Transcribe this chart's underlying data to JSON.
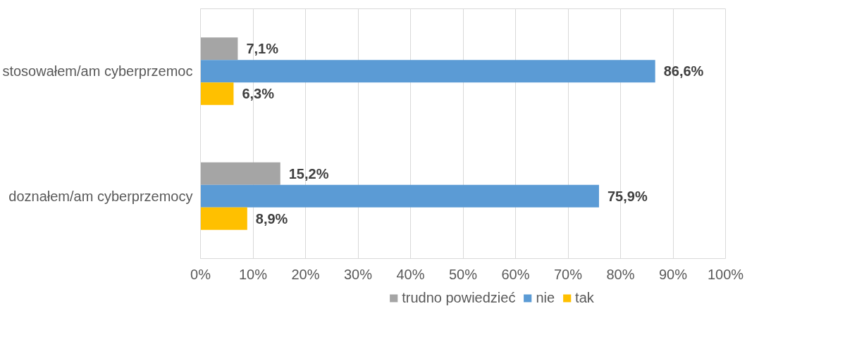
{
  "chart_data": {
    "type": "bar",
    "orientation": "horizontal",
    "categories": [
      "stosowałem/am cyberprzemoc",
      "doznałem/am cyberprzemocy"
    ],
    "series": [
      {
        "name": "trudno powiedzieć",
        "color": "#a5a5a5",
        "values": [
          7.1,
          15.2
        ],
        "value_labels": [
          "7,1%",
          "15,2%"
        ]
      },
      {
        "name": "nie",
        "color": "#5b9bd5",
        "values": [
          86.6,
          75.9
        ],
        "value_labels": [
          "86,6%",
          "75,9%"
        ]
      },
      {
        "name": "tak",
        "color": "#ffc000",
        "values": [
          6.3,
          8.9
        ],
        "value_labels": [
          "6,3%",
          "8,9%"
        ]
      }
    ],
    "xlim": [
      0,
      100
    ],
    "xticks": [
      {
        "value": 0,
        "label": "0%"
      },
      {
        "value": 10,
        "label": "10%"
      },
      {
        "value": 20,
        "label": "20%"
      },
      {
        "value": 30,
        "label": "30%"
      },
      {
        "value": 40,
        "label": "40%"
      },
      {
        "value": 50,
        "label": "50%"
      },
      {
        "value": 60,
        "label": "60%"
      },
      {
        "value": 70,
        "label": "70%"
      },
      {
        "value": 80,
        "label": "80%"
      },
      {
        "value": 90,
        "label": "90%"
      },
      {
        "value": 100,
        "label": "100%"
      }
    ],
    "grid": "x",
    "legend": "bottom"
  }
}
